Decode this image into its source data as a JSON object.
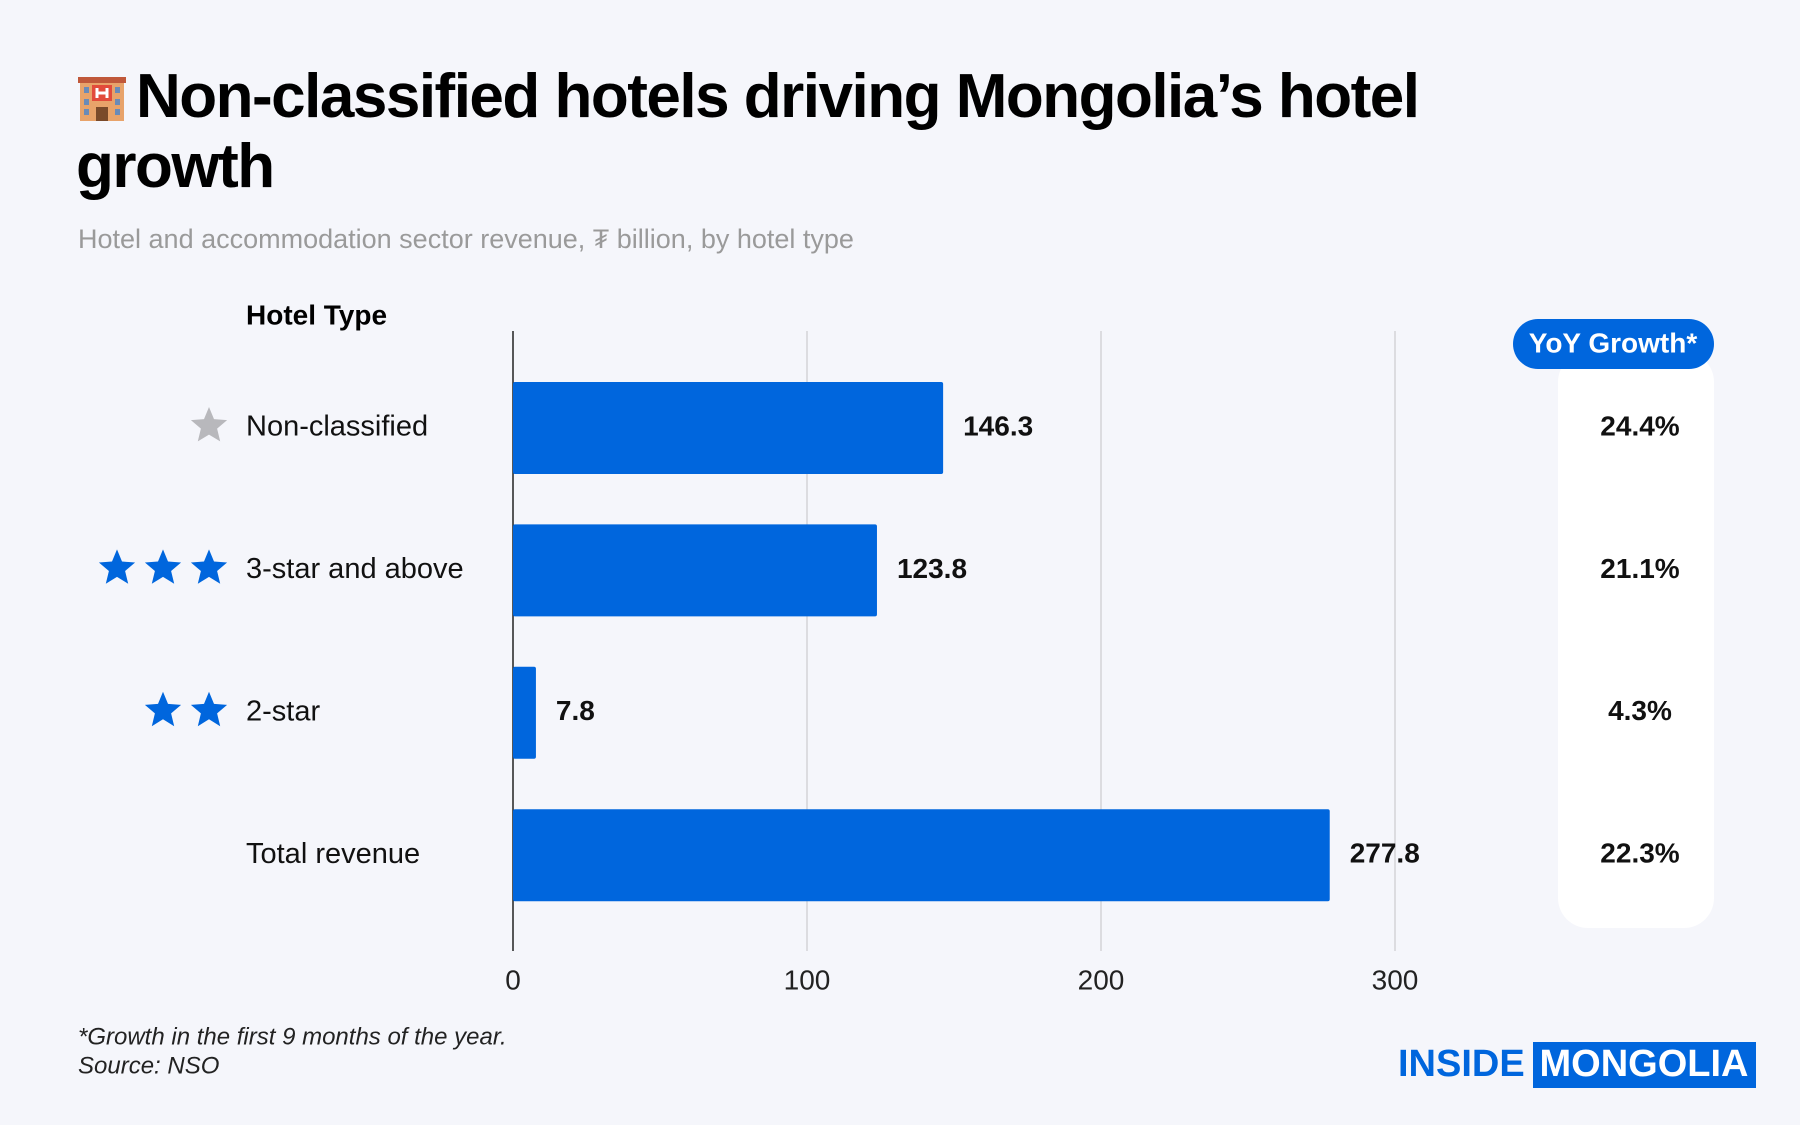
{
  "chart_data": {
    "type": "bar",
    "orientation": "horizontal",
    "title": "Non-classified hotels driving Mongolia’s hotel growth",
    "subtitle": "Hotel and accommodation sector revenue, ₮ billion, by hotel type",
    "category_header": "Hotel Type",
    "categories": [
      "Non-classified",
      "3-star and above",
      "2-star",
      "Total revenue"
    ],
    "values": [
      146.3,
      123.8,
      7.8,
      277.8
    ],
    "color": "#0066dd",
    "xlim": [
      0,
      300
    ],
    "xticks": [
      0,
      100,
      200,
      300
    ],
    "grid": true,
    "growth_header": "YoY Growth*",
    "growth_labels": [
      "24.4%",
      "21.1%",
      "4.3%",
      "22.3%"
    ],
    "footnote": "*Growth in the first 9 months of the year.",
    "source": "Source: NSO",
    "brand": [
      "INSIDE",
      "MONGOLIA"
    ]
  }
}
